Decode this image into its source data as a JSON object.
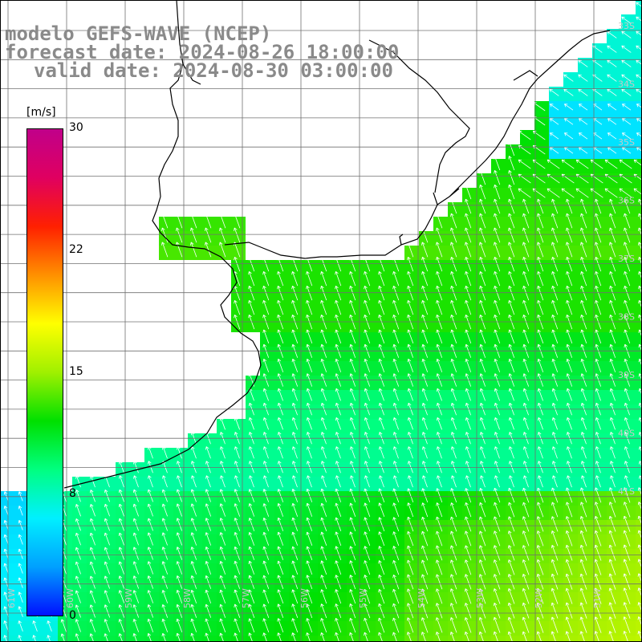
{
  "header": {
    "line1": "modelo GEFS-WAVE (NCEP)",
    "line2": "forecast date: 2024-08-26 18:00:00",
    "line3": "valid date: 2024-08-30 03:00:00"
  },
  "colorbar": {
    "unit": "[m/s]",
    "ticks": [
      "30",
      "22",
      "15",
      "8",
      "0"
    ],
    "min": 0,
    "max": 30,
    "stops": [
      "#0010ff",
      "#00a0ff",
      "#00f0ff",
      "#00ff80",
      "#00e000",
      "#a0f000",
      "#ffff00",
      "#ff9000",
      "#ff2000",
      "#e00060",
      "#c0008a"
    ]
  },
  "map": {
    "lon_labels": [
      "61W",
      "60W",
      "59W",
      "58W",
      "57W",
      "56W",
      "55W",
      "54W",
      "53W",
      "52W",
      "51W"
    ],
    "lat_labels": [
      "33S",
      "34S",
      "35S",
      "36S",
      "37S",
      "38S",
      "39S",
      "40S",
      "41S"
    ],
    "wind_direction": "from southeast (arrows pointing northwest)"
  }
}
